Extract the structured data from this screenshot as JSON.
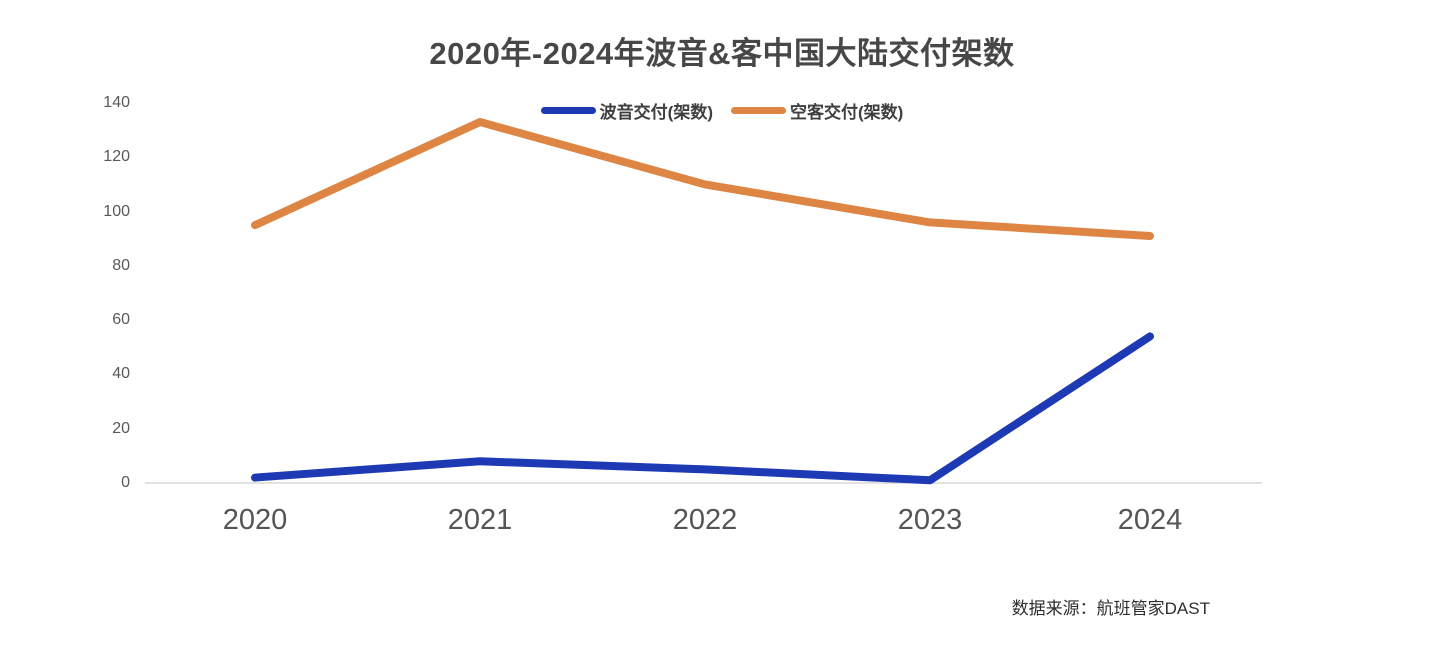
{
  "title": "2020年-2024年波音&客中国大陆交付架数",
  "source": "数据来源：航班管家DAST",
  "chart_data": {
    "type": "line",
    "title": "2020年-2024年波音&客中国大陆交付架数",
    "categories": [
      "2020",
      "2021",
      "2022",
      "2023",
      "2024"
    ],
    "series": [
      {
        "name": "波音交付(架数)",
        "color": "#1d39b4",
        "values": [
          2,
          8,
          5,
          1,
          54
        ]
      },
      {
        "name": "空客交付(架数)",
        "color": "#df8543",
        "values": [
          95,
          133,
          110,
          96,
          91
        ]
      }
    ],
    "xlabel": "",
    "ylabel": "",
    "ylim": [
      0,
      140
    ],
    "yticks": [
      0,
      20,
      40,
      60,
      80,
      100,
      120,
      140
    ],
    "grid": false,
    "legend_position": "top-center",
    "axis_line_color": "#d9d9d9",
    "tick_text_color": "#595959"
  }
}
